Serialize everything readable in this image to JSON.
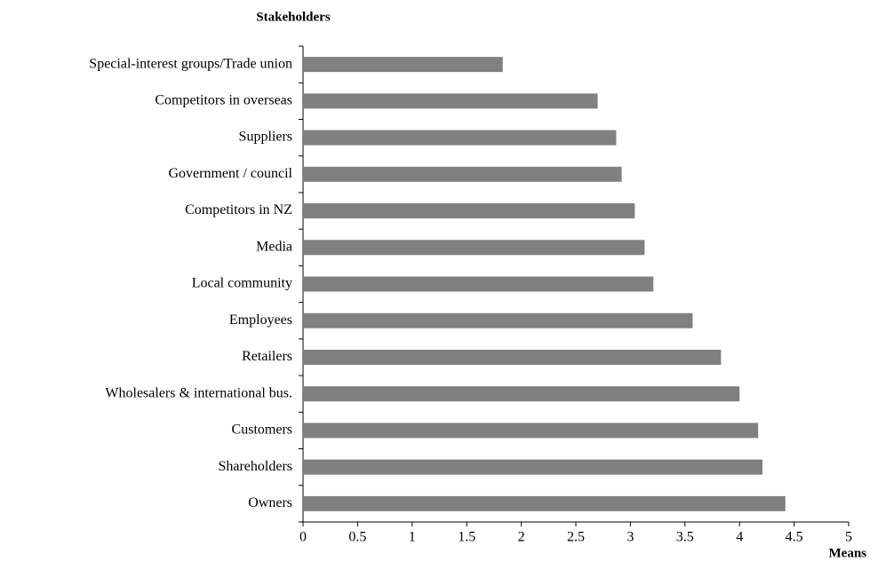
{
  "chart_data": {
    "type": "bar",
    "orientation": "horizontal",
    "y_axis_label": "Stakeholders",
    "x_axis_label": "Means",
    "categories": [
      "Special-interest groups/Trade union",
      "Competitors in overseas",
      "Suppliers",
      "Government / council",
      "Competitors in NZ",
      "Media",
      "Local community",
      "Employees",
      "Retailers",
      "Wholesalers & international bus.",
      "Customers",
      "Shareholders",
      "Owners"
    ],
    "values": [
      1.83,
      2.7,
      2.87,
      2.92,
      3.04,
      3.13,
      3.21,
      3.57,
      3.83,
      4.0,
      4.17,
      4.21,
      4.42
    ],
    "color": "#808080",
    "xlim": [
      0,
      5
    ],
    "xticks": [
      0,
      0.5,
      1,
      1.5,
      2,
      2.5,
      3,
      3.5,
      4,
      4.5,
      5
    ],
    "grid": false
  }
}
